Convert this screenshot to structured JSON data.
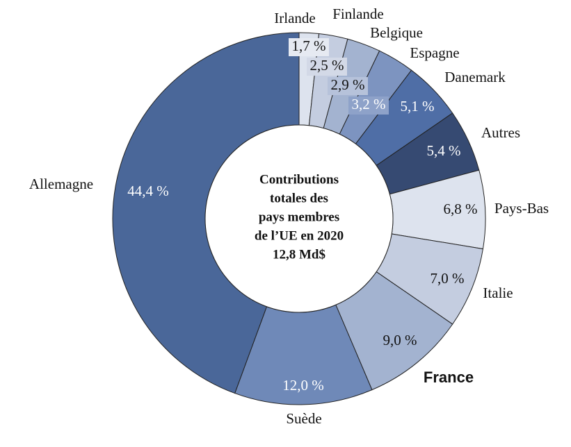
{
  "chart_data": {
    "type": "donut",
    "categories": [
      "Irlande",
      "Finlande",
      "Belgique",
      "Espagne",
      "Danemark",
      "Autres",
      "Pays-Bas",
      "Italie",
      "France",
      "Suède",
      "Allemagne"
    ],
    "values": [
      1.7,
      2.5,
      2.9,
      3.2,
      5.1,
      5.4,
      6.8,
      7.0,
      9.0,
      12.0,
      44.4
    ],
    "value_labels": [
      "1,7 %",
      "2,5 %",
      "2,9 %",
      "3,2 %",
      "5,1 %",
      "5,4 %",
      "6,8 %",
      "7,0 %",
      "9,0 %",
      "12,0 %",
      "44,4 %"
    ],
    "colors": [
      "#dde3ee",
      "#c4cde0",
      "#a3b3d0",
      "#7d94c0",
      "#4f6ea6",
      "#364a72",
      "#dde3ee",
      "#c4cde0",
      "#a3b3d0",
      "#6f89b8",
      "#4a6799"
    ],
    "center_text": [
      "Contributions",
      "totales des",
      "pays membres",
      "de l’UE en 2020",
      "12,8 Md$"
    ]
  }
}
